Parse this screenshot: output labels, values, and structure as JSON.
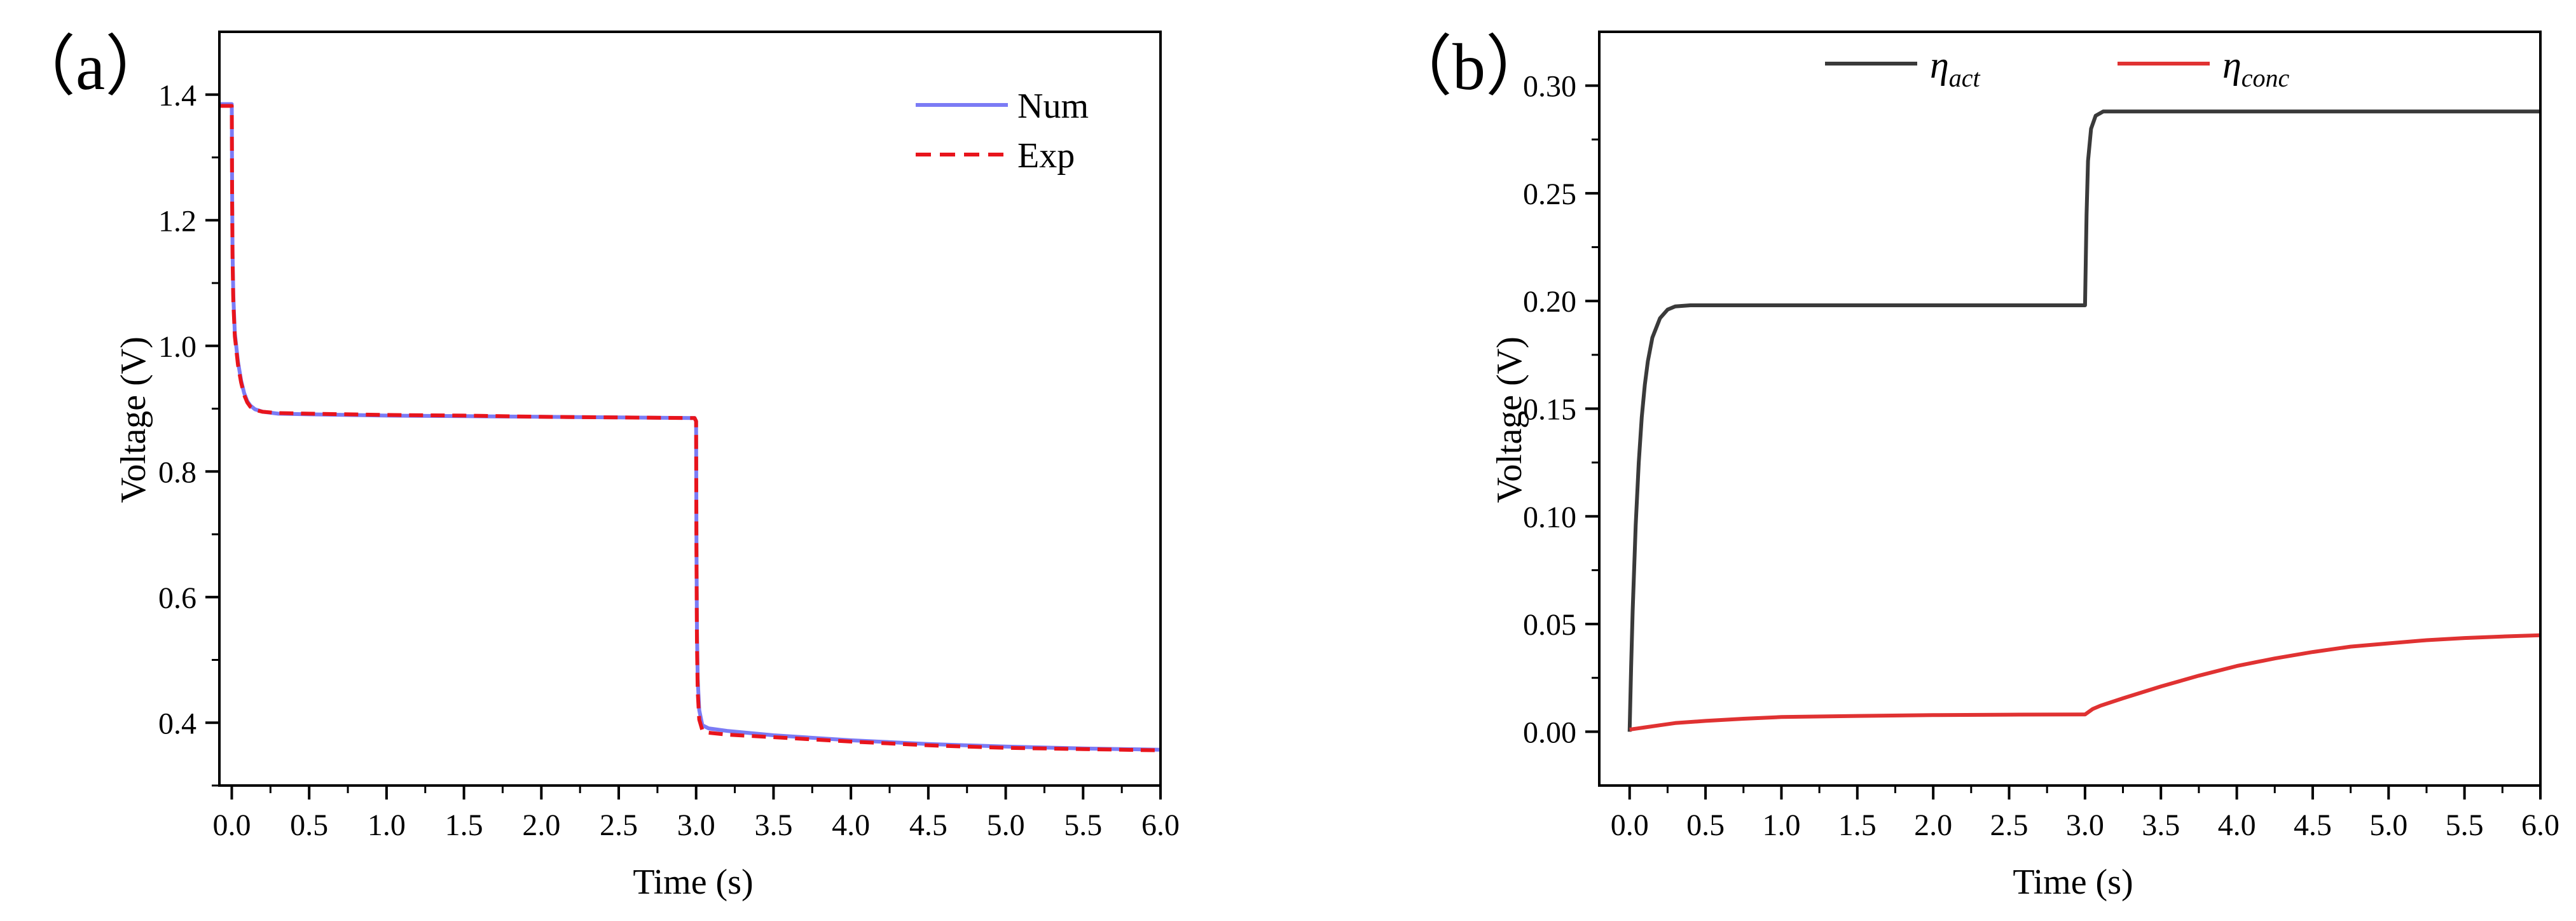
{
  "chart_data": [
    {
      "type": "line",
      "panel_label": "（a）",
      "xlabel": "Time (s)",
      "ylabel": "Voltage (V)",
      "xlim": [
        -0.08,
        6.0
      ],
      "ylim": [
        0.3,
        1.5
      ],
      "xticks": [
        0.0,
        0.5,
        1.0,
        1.5,
        2.0,
        2.5,
        3.0,
        3.5,
        4.0,
        4.5,
        5.0,
        5.5,
        6.0
      ],
      "xtick_labels": [
        "0.0",
        "0.5",
        "1.0",
        "1.5",
        "2.0",
        "2.5",
        "3.0",
        "3.5",
        "4.0",
        "4.5",
        "5.0",
        "5.5",
        "6.0"
      ],
      "yticks": [
        0.4,
        0.6,
        0.8,
        1.0,
        1.2,
        1.4
      ],
      "ytick_labels": [
        "0.4",
        "0.6",
        "0.8",
        "1.0",
        "1.2",
        "1.4"
      ],
      "legend_position": "top-right",
      "series": [
        {
          "name": "Num",
          "color": "#7b7bf5",
          "style": "solid",
          "points": [
            [
              -0.08,
              1.385
            ],
            [
              0.0,
              1.385
            ],
            [
              0.002,
              1.25
            ],
            [
              0.005,
              1.15
            ],
            [
              0.01,
              1.08
            ],
            [
              0.02,
              1.02
            ],
            [
              0.04,
              0.975
            ],
            [
              0.06,
              0.945
            ],
            [
              0.08,
              0.925
            ],
            [
              0.1,
              0.912
            ],
            [
              0.12,
              0.905
            ],
            [
              0.15,
              0.899
            ],
            [
              0.2,
              0.895
            ],
            [
              0.3,
              0.892
            ],
            [
              0.5,
              0.891
            ],
            [
              1.0,
              0.889
            ],
            [
              1.5,
              0.888
            ],
            [
              2.0,
              0.887
            ],
            [
              2.5,
              0.886
            ],
            [
              2.99,
              0.885
            ],
            [
              3.0,
              0.88
            ],
            [
              3.002,
              0.7
            ],
            [
              3.005,
              0.55
            ],
            [
              3.01,
              0.47
            ],
            [
              3.02,
              0.42
            ],
            [
              3.04,
              0.396
            ],
            [
              3.08,
              0.391
            ],
            [
              3.2,
              0.387
            ],
            [
              3.5,
              0.38
            ],
            [
              4.0,
              0.372
            ],
            [
              4.5,
              0.366
            ],
            [
              5.0,
              0.362
            ],
            [
              5.5,
              0.359
            ],
            [
              6.0,
              0.357
            ]
          ]
        },
        {
          "name": "Exp",
          "color": "#e8141c",
          "style": "dashed",
          "points": [
            [
              -0.08,
              1.382
            ],
            [
              0.0,
              1.382
            ],
            [
              0.002,
              1.24
            ],
            [
              0.005,
              1.14
            ],
            [
              0.01,
              1.07
            ],
            [
              0.02,
              1.015
            ],
            [
              0.04,
              0.97
            ],
            [
              0.06,
              0.942
            ],
            [
              0.08,
              0.922
            ],
            [
              0.1,
              0.91
            ],
            [
              0.12,
              0.903
            ],
            [
              0.15,
              0.898
            ],
            [
              0.2,
              0.895
            ],
            [
              0.3,
              0.893
            ],
            [
              0.5,
              0.892
            ],
            [
              1.0,
              0.89
            ],
            [
              1.5,
              0.889
            ],
            [
              2.0,
              0.887
            ],
            [
              2.5,
              0.886
            ],
            [
              2.99,
              0.885
            ],
            [
              3.0,
              0.88
            ],
            [
              3.002,
              0.68
            ],
            [
              3.005,
              0.53
            ],
            [
              3.01,
              0.45
            ],
            [
              3.02,
              0.405
            ],
            [
              3.04,
              0.388
            ],
            [
              3.08,
              0.384
            ],
            [
              3.2,
              0.381
            ],
            [
              3.5,
              0.377
            ],
            [
              4.0,
              0.37
            ],
            [
              4.5,
              0.364
            ],
            [
              5.0,
              0.36
            ],
            [
              5.5,
              0.358
            ],
            [
              6.0,
              0.356
            ]
          ]
        }
      ]
    },
    {
      "type": "line",
      "panel_label": "（b）",
      "xlabel": "Time (s)",
      "ylabel": "Voltage (V)",
      "xlim": [
        -0.2,
        6.0
      ],
      "ylim": [
        -0.025,
        0.325
      ],
      "xticks": [
        0.0,
        0.5,
        1.0,
        1.5,
        2.0,
        2.5,
        3.0,
        3.5,
        4.0,
        4.5,
        5.0,
        5.5,
        6.0
      ],
      "xtick_labels": [
        "0.0",
        "0.5",
        "1.0",
        "1.5",
        "2.0",
        "2.5",
        "3.0",
        "3.5",
        "4.0",
        "4.5",
        "5.0",
        "5.5",
        "6.0"
      ],
      "yticks": [
        0.0,
        0.05,
        0.1,
        0.15,
        0.2,
        0.25,
        0.3
      ],
      "ytick_labels": [
        "0.00",
        "0.05",
        "0.10",
        "0.15",
        "0.20",
        "0.25",
        "0.30"
      ],
      "legend_position": "top",
      "series": [
        {
          "name": "η",
          "subscript": "act",
          "color": "#3a3a3a",
          "style": "solid",
          "points": [
            [
              0.0,
              0.0
            ],
            [
              0.01,
              0.03
            ],
            [
              0.02,
              0.056
            ],
            [
              0.04,
              0.096
            ],
            [
              0.06,
              0.125
            ],
            [
              0.08,
              0.146
            ],
            [
              0.1,
              0.161
            ],
            [
              0.12,
              0.172
            ],
            [
              0.15,
              0.183
            ],
            [
              0.2,
              0.192
            ],
            [
              0.25,
              0.196
            ],
            [
              0.3,
              0.1975
            ],
            [
              0.4,
              0.198
            ],
            [
              1.0,
              0.198
            ],
            [
              2.0,
              0.198
            ],
            [
              2.99,
              0.198
            ],
            [
              3.0,
              0.198
            ],
            [
              3.01,
              0.24
            ],
            [
              3.02,
              0.265
            ],
            [
              3.04,
              0.28
            ],
            [
              3.07,
              0.286
            ],
            [
              3.12,
              0.288
            ],
            [
              3.3,
              0.288
            ],
            [
              4.0,
              0.288
            ],
            [
              5.0,
              0.288
            ],
            [
              6.0,
              0.288
            ]
          ]
        },
        {
          "name": "η",
          "subscript": "conc",
          "color": "#e03232",
          "style": "solid",
          "points": [
            [
              0.0,
              0.001
            ],
            [
              0.05,
              0.0015
            ],
            [
              0.1,
              0.002
            ],
            [
              0.2,
              0.003
            ],
            [
              0.3,
              0.004
            ],
            [
              0.5,
              0.005
            ],
            [
              0.75,
              0.006
            ],
            [
              1.0,
              0.0068
            ],
            [
              1.5,
              0.0073
            ],
            [
              2.0,
              0.0077
            ],
            [
              2.5,
              0.0079
            ],
            [
              2.99,
              0.008
            ],
            [
              3.0,
              0.008
            ],
            [
              3.05,
              0.0105
            ],
            [
              3.1,
              0.012
            ],
            [
              3.25,
              0.0155
            ],
            [
              3.5,
              0.021
            ],
            [
              3.75,
              0.026
            ],
            [
              4.0,
              0.0305
            ],
            [
              4.25,
              0.034
            ],
            [
              4.5,
              0.037
            ],
            [
              4.75,
              0.0395
            ],
            [
              5.0,
              0.041
            ],
            [
              5.25,
              0.0425
            ],
            [
              5.5,
              0.0435
            ],
            [
              5.75,
              0.0442
            ],
            [
              6.0,
              0.0448
            ]
          ]
        }
      ]
    }
  ]
}
